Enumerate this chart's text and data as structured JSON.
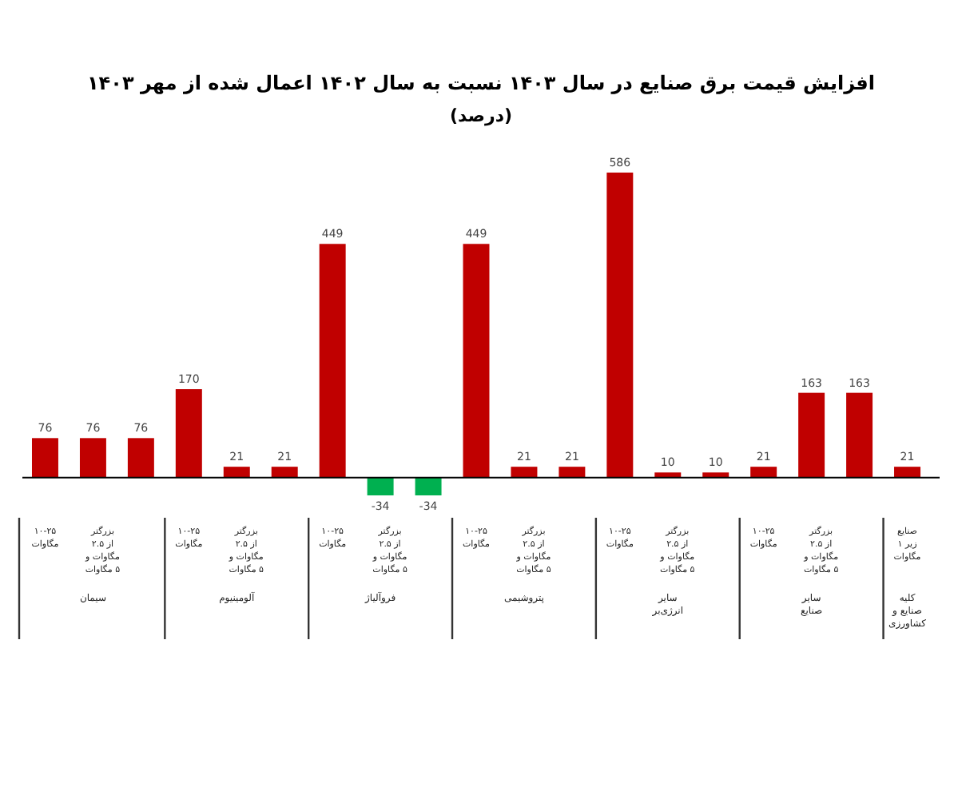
{
  "chart_data": {
    "type": "bar",
    "title": "افزایش قیمت برق صنایع در سال ۱۴۰۳ نسبت به سال ۱۴۰۲ اعمال شده از مهر ۱۴۰۳",
    "subtitle": "(درصد)",
    "categories": [
      "۱۰-۲۵ مگاوات",
      "بزرگتر از ۲.۵ مگاوات و ۵ مگاوات",
      null,
      "۱۰-۲۵ مگاوات",
      "بزرگتر از ۲.۵ مگاوات و ۵ مگاوات",
      null,
      "۱۰-۲۵ مگاوات",
      "بزرگتر از ۲.۵ مگاوات و ۵ مگاوات",
      null,
      "۱۰-۲۵ مگاوات",
      "بزرگتر از ۲.۵ مگاوات و ۵ مگاوات",
      null,
      "۱۰-۲۵ مگاوات",
      "بزرگتر از ۲.۵ مگاوات و ۵ مگاوات",
      null,
      "۱۰-۲۵ مگاوات",
      "بزرگتر از ۲.۵ مگاوات و ۵ مگاوات",
      null,
      "صنایع زیر ۱ مگاوات"
    ],
    "values": [
      76,
      76,
      76,
      170,
      21,
      21,
      449,
      -34,
      -34,
      449,
      21,
      21,
      586,
      10,
      10,
      21,
      163,
      163,
      21
    ],
    "colors": [
      "#c00000",
      "#c00000",
      "#c00000",
      "#c00000",
      "#c00000",
      "#c00000",
      "#c00000",
      "#00b050",
      "#00b050",
      "#c00000",
      "#c00000",
      "#c00000",
      "#c00000",
      "#c00000",
      "#c00000",
      "#c00000",
      "#c00000",
      "#c00000",
      "#c00000"
    ],
    "data_labels": true,
    "annotations": [
      "سیمان",
      "آلومینیوم",
      "فروآلیاژ",
      "پتروشیمی",
      "سایر انرژی‌بر",
      "سایر صنایع",
      "کلیه صنایع و کشاورزی"
    ]
  }
}
